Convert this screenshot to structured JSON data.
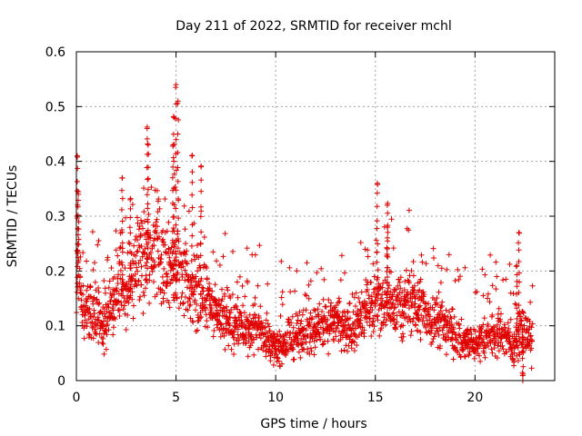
{
  "chart_data": {
    "type": "scatter",
    "title": "Day 211 of 2022, SRMTID for receiver mchl",
    "xlabel": "GPS time / hours",
    "ylabel": "SRMTID / TECUs",
    "xlim": [
      0,
      24
    ],
    "ylim": [
      0,
      0.6
    ],
    "x_ticks": [
      0,
      5,
      10,
      15,
      20
    ],
    "y_ticks": [
      0,
      0.1,
      0.2,
      0.3,
      0.4,
      0.5,
      0.6
    ],
    "x_tick_labels": [
      "0",
      "5",
      "10",
      "15",
      "20"
    ],
    "y_tick_labels": [
      "0",
      "0.1",
      "0.2",
      "0.3",
      "0.4",
      "0.5",
      "0.6"
    ],
    "grid": true,
    "marker": "plus",
    "color": "#e00000",
    "series": [
      {
        "name": "SRMTID",
        "profile_x": [
          0,
          0.1,
          0.3,
          0.6,
          1.0,
          1.4,
          1.8,
          2.2,
          2.5,
          3.0,
          3.5,
          4.0,
          4.5,
          5.0,
          5.5,
          6.0,
          6.5,
          7.0,
          7.5,
          8.0,
          8.5,
          9.0,
          9.5,
          10.0,
          10.5,
          11.0,
          11.5,
          12.0,
          12.5,
          13.0,
          13.5,
          14.0,
          14.5,
          15.0,
          15.5,
          16.0,
          16.5,
          17.0,
          17.5,
          18.0,
          18.5,
          19.0,
          19.5,
          20.0,
          20.5,
          21.0,
          21.5,
          22.0,
          22.3,
          22.6,
          22.9
        ],
        "profile_y": [
          0.15,
          0.22,
          0.12,
          0.14,
          0.12,
          0.1,
          0.14,
          0.18,
          0.15,
          0.2,
          0.22,
          0.24,
          0.2,
          0.22,
          0.18,
          0.16,
          0.15,
          0.12,
          0.11,
          0.1,
          0.09,
          0.1,
          0.08,
          0.06,
          0.07,
          0.08,
          0.09,
          0.1,
          0.1,
          0.11,
          0.09,
          0.1,
          0.13,
          0.15,
          0.14,
          0.13,
          0.14,
          0.15,
          0.12,
          0.11,
          0.1,
          0.08,
          0.07,
          0.07,
          0.08,
          0.09,
          0.08,
          0.06,
          0.1,
          0.08,
          0.07
        ],
        "spikes": [
          {
            "x": 0.05,
            "y": 0.41
          },
          {
            "x": 0.1,
            "y": 0.34
          },
          {
            "x": 2.3,
            "y": 0.37
          },
          {
            "x": 2.7,
            "y": 0.33
          },
          {
            "x": 3.55,
            "y": 0.46
          },
          {
            "x": 3.6,
            "y": 0.43
          },
          {
            "x": 5.0,
            "y": 0.54
          },
          {
            "x": 5.1,
            "y": 0.51
          },
          {
            "x": 4.9,
            "y": 0.48
          },
          {
            "x": 4.85,
            "y": 0.43
          },
          {
            "x": 5.8,
            "y": 0.41
          },
          {
            "x": 6.25,
            "y": 0.39
          },
          {
            "x": 15.1,
            "y": 0.36
          },
          {
            "x": 15.6,
            "y": 0.32
          },
          {
            "x": 15.6,
            "y": 0.28
          },
          {
            "x": 22.2,
            "y": 0.27
          },
          {
            "x": 22.1,
            "y": 0.21
          },
          {
            "x": 22.4,
            "y": 0.0
          }
        ]
      }
    ]
  }
}
